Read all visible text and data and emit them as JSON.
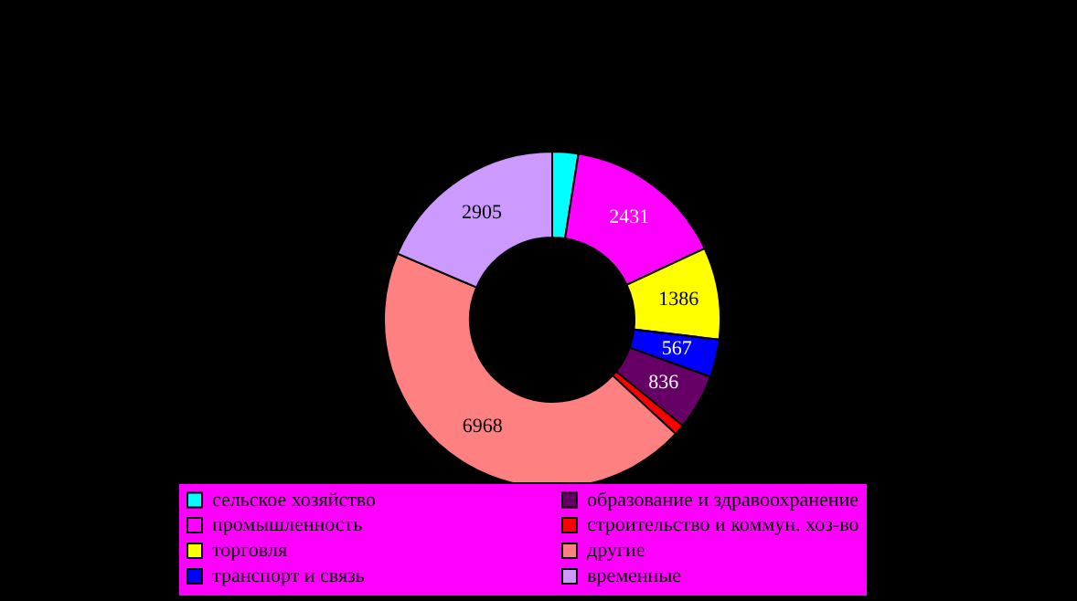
{
  "chart_data": {
    "type": "donut",
    "categories": [
      "сельское хозяйство",
      "промышленность",
      "торговля",
      "транспорт и связь",
      "образование и здравоохранение",
      "строительство и коммун. хоз-во",
      "другие",
      "временные"
    ],
    "values": [
      390,
      2431,
      1386,
      567,
      836,
      160,
      6968,
      2905
    ],
    "value_labels": [
      null,
      "2431",
      "1386",
      "567",
      "836",
      null,
      "6968",
      "2905"
    ],
    "colors": [
      "#00ffff",
      "#ff00ff",
      "#ffff00",
      "#0000ff",
      "#660066",
      "#ff0000",
      "#ff8080",
      "#cc99ff"
    ],
    "legend": "bottom"
  }
}
